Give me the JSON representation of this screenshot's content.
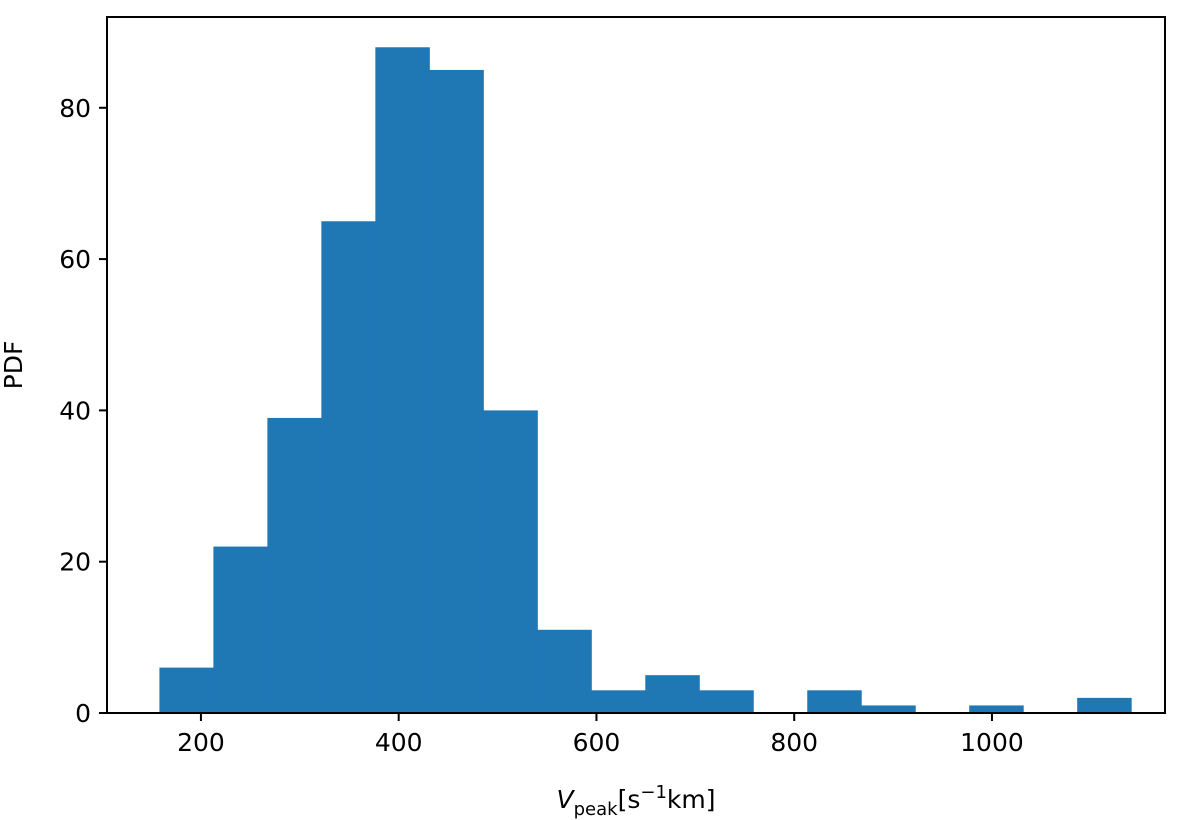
{
  "chart_data": {
    "type": "bar",
    "title": "",
    "xlabel": {
      "main": "V",
      "sub": "peak",
      "unit_open": "[s",
      "unit_sup": "−1",
      "unit_close": "km]"
    },
    "ylabel": "PDF",
    "xlim": [
      105,
      1175
    ],
    "ylim": [
      0,
      92
    ],
    "bar_color": "#1f77b4",
    "bin_start": 158,
    "bin_width": 54.6,
    "values": [
      6,
      22,
      39,
      65,
      88,
      85,
      40,
      11,
      3,
      5,
      3,
      0,
      3,
      1,
      0,
      1,
      0,
      2
    ],
    "xticks": [
      200,
      400,
      600,
      800,
      1000
    ],
    "xtick_labels": [
      "200",
      "400",
      "600",
      "800",
      "1000"
    ],
    "yticks": [
      0,
      20,
      40,
      60,
      80
    ],
    "ytick_labels": [
      "0",
      "20",
      "40",
      "60",
      "80"
    ],
    "grid": false,
    "legend": "none"
  }
}
